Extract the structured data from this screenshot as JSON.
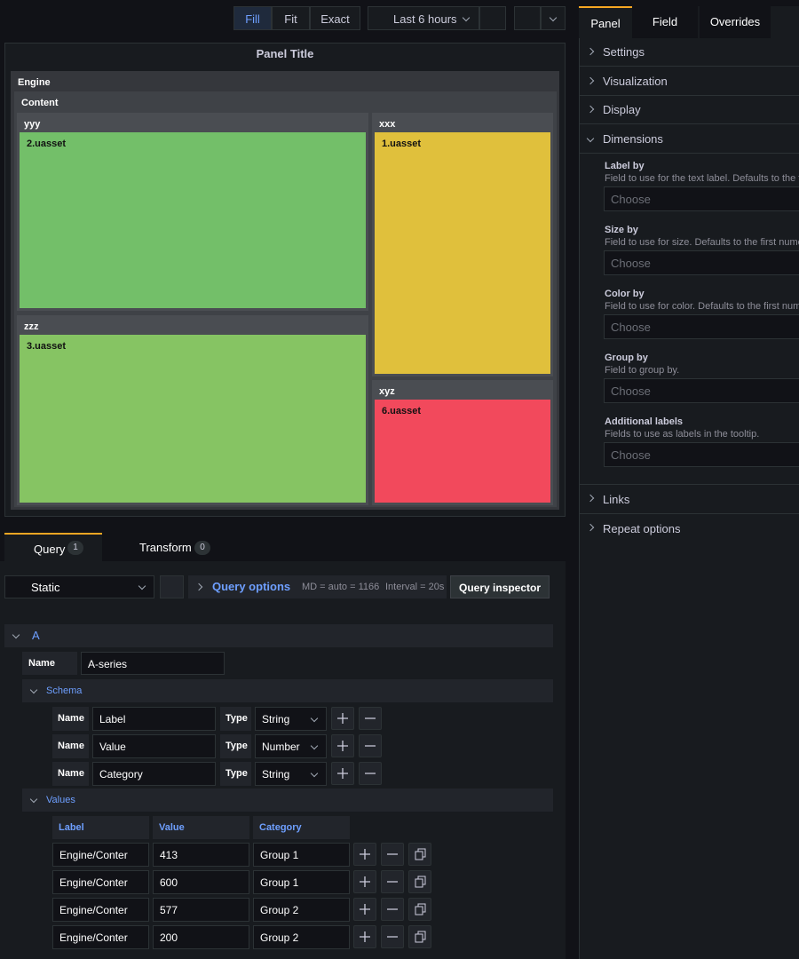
{
  "toolbar": {
    "modes": [
      "Fill",
      "Fit",
      "Exact"
    ],
    "time_range": "Last 6 hours"
  },
  "panel": {
    "title": "Panel Title",
    "treemap": {
      "root": "Engine",
      "child": "Content",
      "groups": [
        {
          "name": "yyy",
          "item": "2.uasset"
        },
        {
          "name": "zzz",
          "item": "3.uasset"
        },
        {
          "name": "xxx",
          "item": "1.uasset"
        },
        {
          "name": "xyz",
          "item": "6.uasset"
        }
      ]
    }
  },
  "options": {
    "tabs": [
      "Panel",
      "Field",
      "Overrides"
    ],
    "sections": [
      "Settings",
      "Visualization",
      "Display",
      "Dimensions"
    ],
    "dimensions": [
      {
        "label": "Label by",
        "help": "Field to use for the text label. Defaults to the firs",
        "placeholder": "Choose"
      },
      {
        "label": "Size by",
        "help": "Field to use for size. Defaults to the first numeric",
        "placeholder": "Choose"
      },
      {
        "label": "Color by",
        "help": "Field to use for color. Defaults to the first numeri",
        "placeholder": "Choose"
      },
      {
        "label": "Group by",
        "help": "Field to group by.",
        "placeholder": "Choose"
      },
      {
        "label": "Additional labels",
        "help": "Fields to use as labels in the tooltip.",
        "placeholder": "Choose"
      }
    ],
    "more_sections": [
      "Links",
      "Repeat options"
    ]
  },
  "query_tabs": [
    {
      "label": "Query",
      "count": 1
    },
    {
      "label": "Transform",
      "count": 0
    }
  ],
  "query_bar": {
    "datasource": "Static",
    "options": "Query options",
    "md": "MD = auto = 1166",
    "interval": "Interval = 20s",
    "inspector": "Query inspector"
  },
  "query": {
    "ref": "A",
    "name_label": "Name",
    "name": "A-series",
    "schema_title": "Schema",
    "schema": [
      {
        "name_label": "Name",
        "name": "Label",
        "type_label": "Type",
        "type": "String"
      },
      {
        "name_label": "Name",
        "name": "Value",
        "type_label": "Type",
        "type": "Number"
      },
      {
        "name_label": "Name",
        "name": "Category",
        "type_label": "Type",
        "type": "String"
      }
    ],
    "values_title": "Values",
    "columns": [
      "Label",
      "Value",
      "Category"
    ],
    "rows": [
      [
        "Engine/Conter",
        413,
        "Group 1"
      ],
      [
        "Engine/Conter",
        600,
        "Group 1"
      ],
      [
        "Engine/Conter",
        577,
        "Group 2"
      ],
      [
        "Engine/Conter",
        200,
        "Group 2"
      ]
    ]
  }
}
